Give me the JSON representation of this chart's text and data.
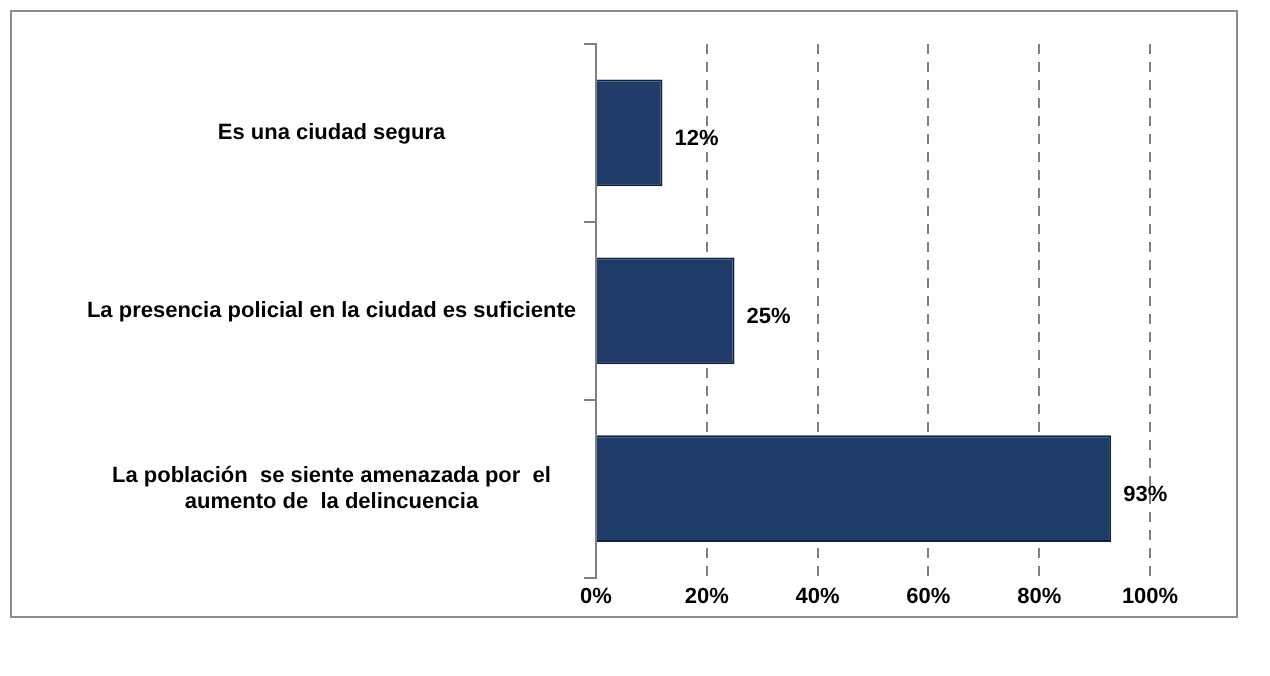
{
  "chart_data": {
    "type": "bar",
    "orientation": "horizontal",
    "categories": [
      "Es una ciudad segura",
      "La presencia policial en la ciudad es suficiente",
      "La población  se siente amenazada por  el aumento de  la delincuencia"
    ],
    "values": [
      12,
      25,
      93
    ],
    "color": "#1f3b68",
    "value_labels": [
      "12%",
      "25%",
      "93%"
    ],
    "xlim": [
      0,
      100
    ],
    "xticks": [
      {
        "value": 0,
        "label": "0%"
      },
      {
        "value": 20,
        "label": "20%"
      },
      {
        "value": 40,
        "label": "40%"
      },
      {
        "value": 60,
        "label": "60%"
      },
      {
        "value": 80,
        "label": "80%"
      },
      {
        "value": 100,
        "label": "100%"
      }
    ],
    "grid": "x",
    "legend": false
  }
}
